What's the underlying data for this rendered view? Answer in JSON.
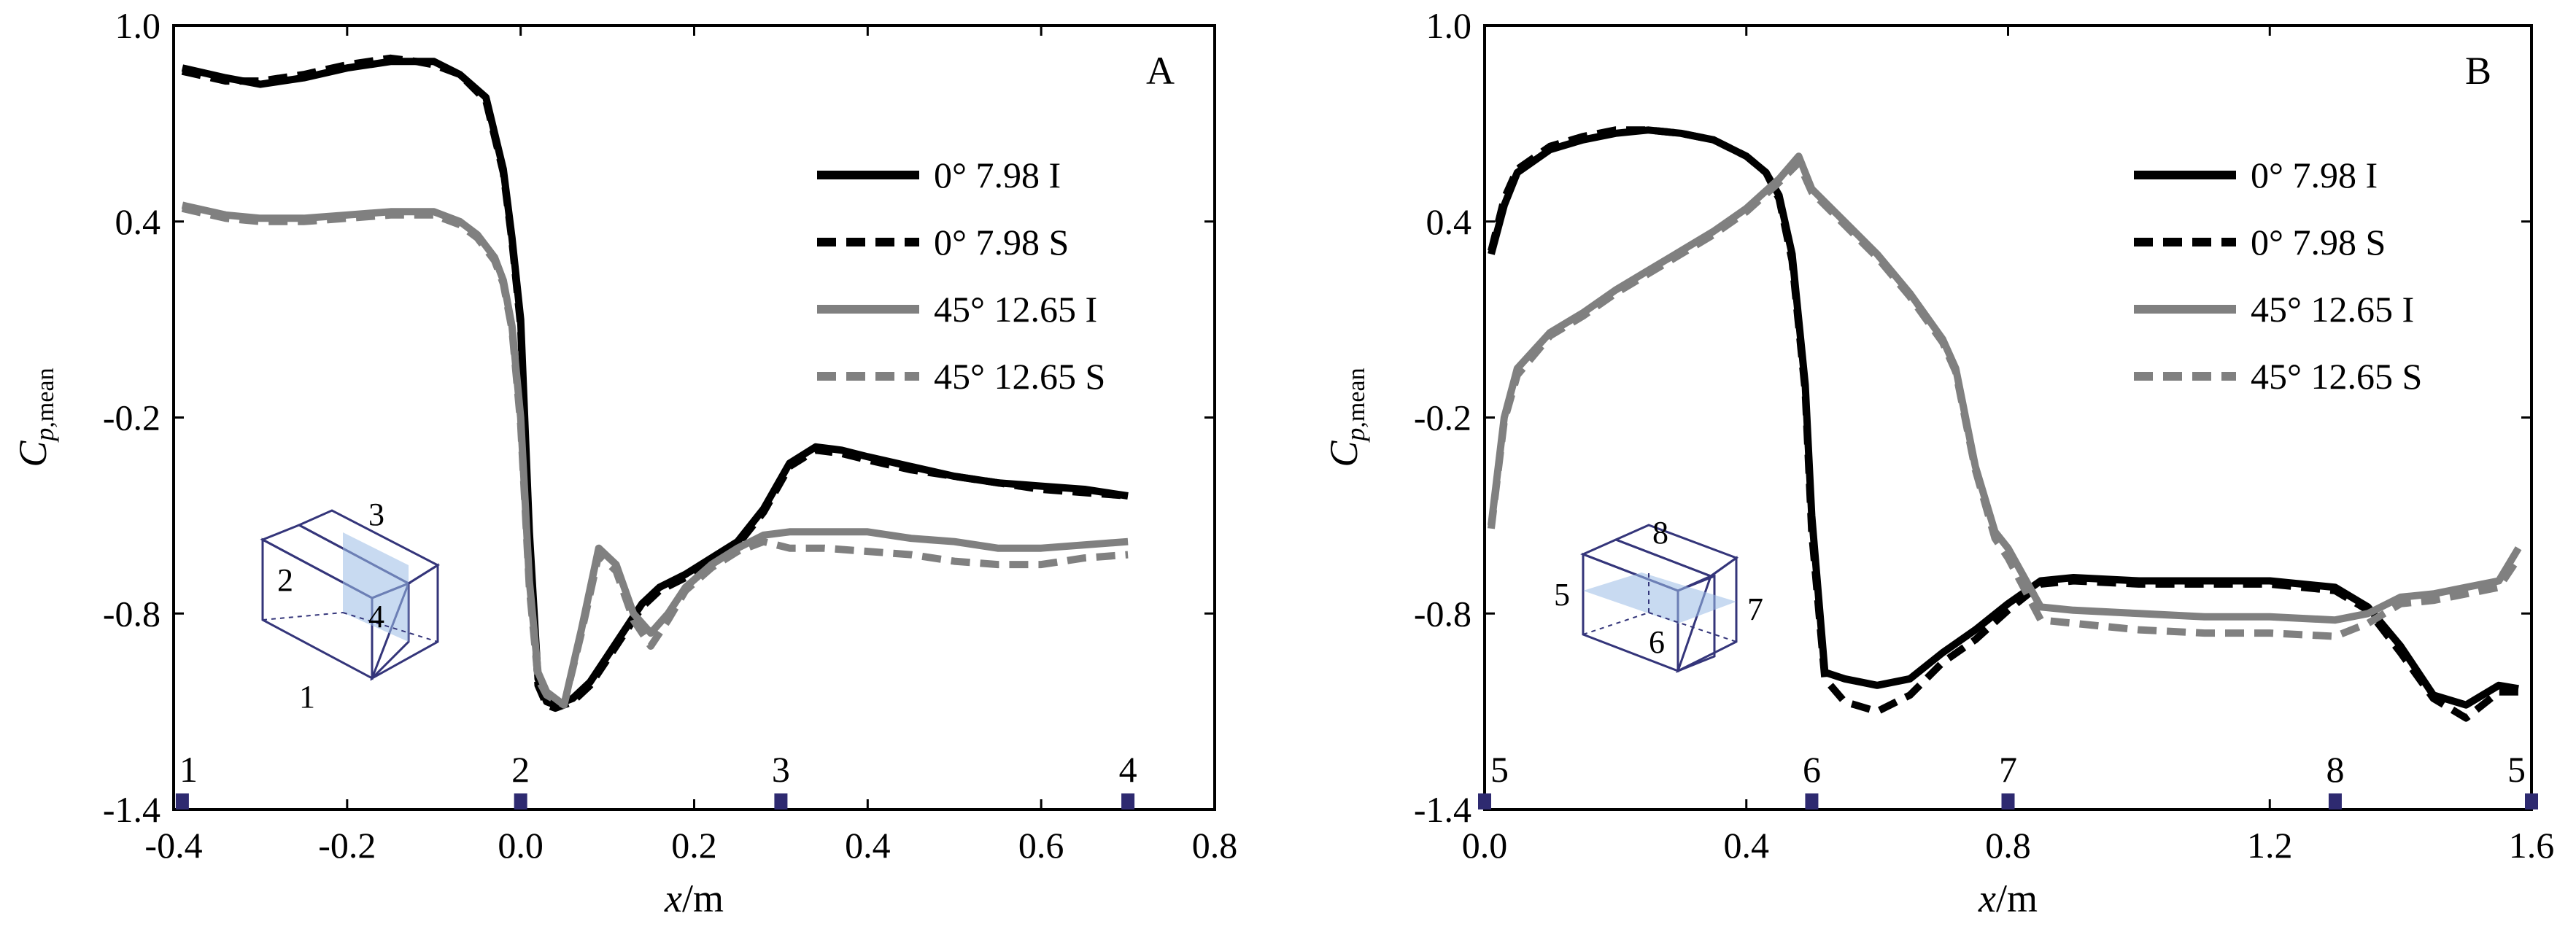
{
  "chart_data": [
    {
      "type": "line",
      "panel_label": "A",
      "xlabel_italic": "x",
      "xlabel_unit": "/m",
      "ylabel_italic": "C",
      "ylabel_sub": "p",
      "ylabel_suffix": ",mean",
      "xlim": [
        -0.4,
        0.8
      ],
      "ylim": [
        -1.4,
        1.0
      ],
      "xticks": [
        -0.4,
        -0.2,
        0.0,
        0.2,
        0.4,
        0.6,
        0.8
      ],
      "xtick_labels": [
        "-0.4",
        "-0.2",
        "0.0",
        "0.2",
        "0.4",
        "0.6",
        "0.8"
      ],
      "yticks": [
        -1.4,
        -0.8,
        -0.2,
        0.4,
        1.0
      ],
      "ytick_labels": [
        "-1.4",
        "-0.8",
        "-0.2",
        "0.4",
        "1.0"
      ],
      "legend_position": "top-right",
      "grid": false,
      "series": [
        {
          "name": "0°  7.98 I",
          "color": "#000000",
          "style": "solid",
          "x": [
            -0.39,
            -0.34,
            -0.3,
            -0.25,
            -0.2,
            -0.15,
            -0.12,
            -0.1,
            -0.07,
            -0.04,
            -0.02,
            -0.01,
            0.0,
            0.01,
            0.02,
            0.03,
            0.04,
            0.06,
            0.08,
            0.1,
            0.12,
            0.14,
            0.16,
            0.19,
            0.22,
            0.25,
            0.28,
            0.31,
            0.34,
            0.37,
            0.4,
            0.45,
            0.5,
            0.55,
            0.6,
            0.65,
            0.7
          ],
          "y": [
            0.87,
            0.84,
            0.82,
            0.84,
            0.87,
            0.89,
            0.89,
            0.89,
            0.85,
            0.78,
            0.56,
            0.35,
            0.1,
            -0.55,
            -1.0,
            -1.07,
            -1.08,
            -1.06,
            -1.01,
            -0.93,
            -0.85,
            -0.77,
            -0.72,
            -0.68,
            -0.63,
            -0.58,
            -0.48,
            -0.34,
            -0.29,
            -0.3,
            -0.32,
            -0.35,
            -0.38,
            -0.4,
            -0.41,
            -0.42,
            -0.44
          ]
        },
        {
          "name": "0°  7.98 S",
          "color": "#000000",
          "style": "dashed",
          "x": [
            -0.39,
            -0.34,
            -0.3,
            -0.25,
            -0.2,
            -0.15,
            -0.12,
            -0.1,
            -0.07,
            -0.04,
            -0.02,
            -0.01,
            0.0,
            0.01,
            0.02,
            0.03,
            0.04,
            0.06,
            0.08,
            0.1,
            0.12,
            0.14,
            0.16,
            0.19,
            0.22,
            0.25,
            0.28,
            0.31,
            0.34,
            0.37,
            0.4,
            0.45,
            0.5,
            0.55,
            0.6,
            0.65,
            0.7
          ],
          "y": [
            0.86,
            0.83,
            0.83,
            0.85,
            0.88,
            0.9,
            0.89,
            0.88,
            0.85,
            0.77,
            0.55,
            0.34,
            0.08,
            -0.57,
            -1.02,
            -1.08,
            -1.09,
            -1.07,
            -1.02,
            -0.94,
            -0.86,
            -0.78,
            -0.73,
            -0.69,
            -0.64,
            -0.59,
            -0.49,
            -0.35,
            -0.3,
            -0.31,
            -0.33,
            -0.36,
            -0.38,
            -0.4,
            -0.42,
            -0.43,
            -0.44
          ]
        },
        {
          "name": "45°  12.65 I",
          "color": "#808080",
          "style": "solid",
          "x": [
            -0.39,
            -0.34,
            -0.3,
            -0.25,
            -0.2,
            -0.15,
            -0.1,
            -0.07,
            -0.05,
            -0.03,
            -0.02,
            -0.01,
            0.0,
            0.01,
            0.02,
            0.03,
            0.05,
            0.07,
            0.09,
            0.11,
            0.13,
            0.15,
            0.17,
            0.19,
            0.22,
            0.25,
            0.28,
            0.31,
            0.35,
            0.4,
            0.45,
            0.5,
            0.55,
            0.6,
            0.65,
            0.7
          ],
          "y": [
            0.45,
            0.42,
            0.41,
            0.41,
            0.42,
            0.43,
            0.43,
            0.4,
            0.36,
            0.29,
            0.22,
            0.08,
            -0.2,
            -0.7,
            -0.98,
            -1.04,
            -1.08,
            -0.85,
            -0.6,
            -0.65,
            -0.8,
            -0.86,
            -0.8,
            -0.72,
            -0.65,
            -0.6,
            -0.56,
            -0.55,
            -0.55,
            -0.55,
            -0.57,
            -0.58,
            -0.6,
            -0.6,
            -0.59,
            -0.58
          ]
        },
        {
          "name": "45°  12.65 S",
          "color": "#808080",
          "style": "dashed",
          "x": [
            -0.39,
            -0.34,
            -0.3,
            -0.25,
            -0.2,
            -0.15,
            -0.1,
            -0.07,
            -0.05,
            -0.03,
            -0.02,
            -0.01,
            0.0,
            0.01,
            0.02,
            0.03,
            0.05,
            0.07,
            0.09,
            0.11,
            0.13,
            0.15,
            0.17,
            0.19,
            0.22,
            0.25,
            0.28,
            0.31,
            0.35,
            0.4,
            0.45,
            0.5,
            0.55,
            0.6,
            0.65,
            0.7
          ],
          "y": [
            0.44,
            0.41,
            0.4,
            0.4,
            0.41,
            0.42,
            0.42,
            0.39,
            0.35,
            0.28,
            0.21,
            0.07,
            -0.22,
            -0.72,
            -1.0,
            -1.05,
            -1.08,
            -0.86,
            -0.62,
            -0.67,
            -0.82,
            -0.9,
            -0.82,
            -0.73,
            -0.66,
            -0.61,
            -0.58,
            -0.6,
            -0.6,
            -0.61,
            -0.62,
            -0.64,
            -0.65,
            -0.65,
            -0.63,
            -0.62
          ]
        }
      ],
      "markers": [
        {
          "label": "1",
          "x": -0.39
        },
        {
          "label": "2",
          "x": 0.0
        },
        {
          "label": "3",
          "x": 0.3
        },
        {
          "label": "4",
          "x": 0.7
        }
      ],
      "inset_labels": [
        "1",
        "2",
        "3",
        "4"
      ]
    },
    {
      "type": "line",
      "panel_label": "B",
      "xlabel_italic": "x",
      "xlabel_unit": "/m",
      "ylabel_italic": "C",
      "ylabel_sub": "p",
      "ylabel_suffix": ",mean",
      "xlim": [
        0.0,
        1.6
      ],
      "ylim": [
        -1.4,
        1.0
      ],
      "xticks": [
        0.0,
        0.4,
        0.8,
        1.2,
        1.6
      ],
      "xtick_labels": [
        "0.0",
        "0.4",
        "0.8",
        "1.2",
        "1.6"
      ],
      "yticks": [
        -1.4,
        -0.8,
        -0.2,
        0.4,
        1.0
      ],
      "ytick_labels": [
        "-1.4",
        "-0.8",
        "-0.2",
        "0.4",
        "1.0"
      ],
      "legend_position": "top-right",
      "grid": false,
      "series": [
        {
          "name": "0°  7.98 I",
          "color": "#000000",
          "style": "solid",
          "x": [
            0.01,
            0.03,
            0.05,
            0.1,
            0.15,
            0.2,
            0.25,
            0.3,
            0.35,
            0.4,
            0.43,
            0.45,
            0.47,
            0.49,
            0.5,
            0.52,
            0.55,
            0.6,
            0.65,
            0.7,
            0.75,
            0.8,
            0.85,
            0.9,
            1.0,
            1.1,
            1.2,
            1.3,
            1.35,
            1.4,
            1.45,
            1.5,
            1.55,
            1.58
          ],
          "y": [
            0.3,
            0.45,
            0.55,
            0.62,
            0.65,
            0.67,
            0.68,
            0.67,
            0.65,
            0.6,
            0.55,
            0.48,
            0.3,
            -0.1,
            -0.5,
            -0.98,
            -1.0,
            -1.02,
            -1.0,
            -0.92,
            -0.85,
            -0.77,
            -0.7,
            -0.69,
            -0.7,
            -0.7,
            -0.7,
            -0.72,
            -0.78,
            -0.9,
            -1.05,
            -1.08,
            -1.02,
            -1.03
          ]
        },
        {
          "name": "0°  7.98 S",
          "color": "#000000",
          "style": "dashed",
          "x": [
            0.01,
            0.03,
            0.05,
            0.1,
            0.15,
            0.2,
            0.25,
            0.3,
            0.35,
            0.4,
            0.43,
            0.45,
            0.47,
            0.49,
            0.5,
            0.52,
            0.55,
            0.6,
            0.65,
            0.7,
            0.75,
            0.8,
            0.85,
            0.9,
            1.0,
            1.1,
            1.2,
            1.3,
            1.35,
            1.4,
            1.45,
            1.5,
            1.55,
            1.58
          ],
          "y": [
            0.31,
            0.47,
            0.56,
            0.63,
            0.66,
            0.68,
            0.68,
            0.67,
            0.65,
            0.6,
            0.55,
            0.47,
            0.28,
            -0.12,
            -0.55,
            -1.0,
            -1.07,
            -1.1,
            -1.05,
            -0.95,
            -0.88,
            -0.79,
            -0.71,
            -0.7,
            -0.71,
            -0.71,
            -0.71,
            -0.73,
            -0.79,
            -0.92,
            -1.06,
            -1.12,
            -1.04,
            -1.04
          ]
        },
        {
          "name": "45°  12.65 I",
          "color": "#808080",
          "style": "solid",
          "x": [
            0.01,
            0.03,
            0.05,
            0.1,
            0.15,
            0.2,
            0.25,
            0.3,
            0.35,
            0.4,
            0.45,
            0.48,
            0.5,
            0.55,
            0.6,
            0.65,
            0.7,
            0.72,
            0.75,
            0.78,
            0.8,
            0.85,
            0.9,
            1.0,
            1.1,
            1.2,
            1.3,
            1.35,
            1.4,
            1.45,
            1.5,
            1.55,
            1.58
          ],
          "y": [
            -0.53,
            -0.2,
            -0.05,
            0.06,
            0.12,
            0.19,
            0.25,
            0.31,
            0.37,
            0.44,
            0.53,
            0.6,
            0.5,
            0.4,
            0.3,
            0.18,
            0.04,
            -0.05,
            -0.35,
            -0.55,
            -0.6,
            -0.78,
            -0.79,
            -0.8,
            -0.81,
            -0.81,
            -0.82,
            -0.8,
            -0.75,
            -0.74,
            -0.72,
            -0.7,
            -0.6
          ]
        },
        {
          "name": "45°  12.65 S",
          "color": "#808080",
          "style": "dashed",
          "x": [
            0.01,
            0.03,
            0.05,
            0.1,
            0.15,
            0.2,
            0.25,
            0.3,
            0.35,
            0.4,
            0.45,
            0.48,
            0.5,
            0.55,
            0.6,
            0.65,
            0.7,
            0.72,
            0.75,
            0.78,
            0.8,
            0.85,
            0.9,
            1.0,
            1.1,
            1.2,
            1.3,
            1.35,
            1.4,
            1.45,
            1.5,
            1.55,
            1.58
          ],
          "y": [
            -0.54,
            -0.21,
            -0.07,
            0.05,
            0.11,
            0.18,
            0.24,
            0.3,
            0.36,
            0.43,
            0.52,
            0.58,
            0.49,
            0.39,
            0.29,
            0.17,
            0.03,
            -0.06,
            -0.36,
            -0.57,
            -0.63,
            -0.82,
            -0.83,
            -0.85,
            -0.86,
            -0.86,
            -0.87,
            -0.83,
            -0.77,
            -0.76,
            -0.74,
            -0.72,
            -0.63
          ]
        }
      ],
      "markers": [
        {
          "label": "5",
          "x": 0.0
        },
        {
          "label": "6",
          "x": 0.5
        },
        {
          "label": "7",
          "x": 0.8
        },
        {
          "label": "8",
          "x": 1.3
        },
        {
          "label": "5",
          "x": 1.6
        }
      ],
      "inset_labels": [
        "5",
        "6",
        "7",
        "8"
      ]
    }
  ]
}
